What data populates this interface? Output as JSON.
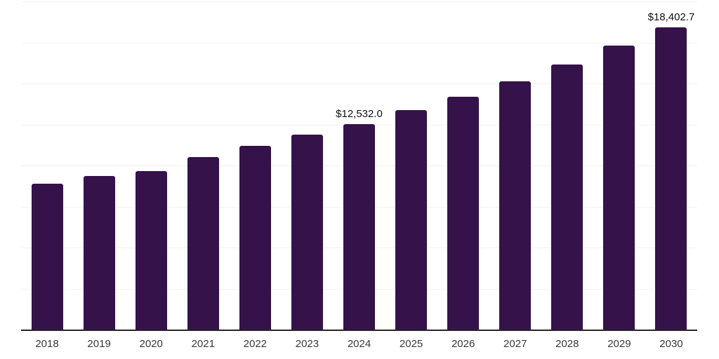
{
  "chart_data": {
    "type": "bar",
    "title": "",
    "xlabel": "",
    "ylabel": "",
    "categories": [
      "2018",
      "2019",
      "2020",
      "2021",
      "2022",
      "2023",
      "2024",
      "2025",
      "2026",
      "2027",
      "2028",
      "2029",
      "2030"
    ],
    "values": [
      8900,
      9380,
      9670,
      10520,
      11180,
      11870,
      12532.0,
      13370,
      14200,
      15150,
      16160,
      17320,
      18402.7
    ],
    "annotations": [
      {
        "category": "2024",
        "label": "$12,532.0"
      },
      {
        "category": "2030",
        "label": "$18,402.7"
      }
    ],
    "ylim": [
      0,
      20000
    ],
    "gridline_step": 2500,
    "grid": "horizontal-only",
    "legend_position": "none",
    "colors": {
      "bar": "#35124a",
      "axis_line": "#262626",
      "gridline": "#f3f3f3",
      "tick_label": "#383838",
      "annotation_text": "#111111",
      "background": "#ffffff"
    }
  }
}
